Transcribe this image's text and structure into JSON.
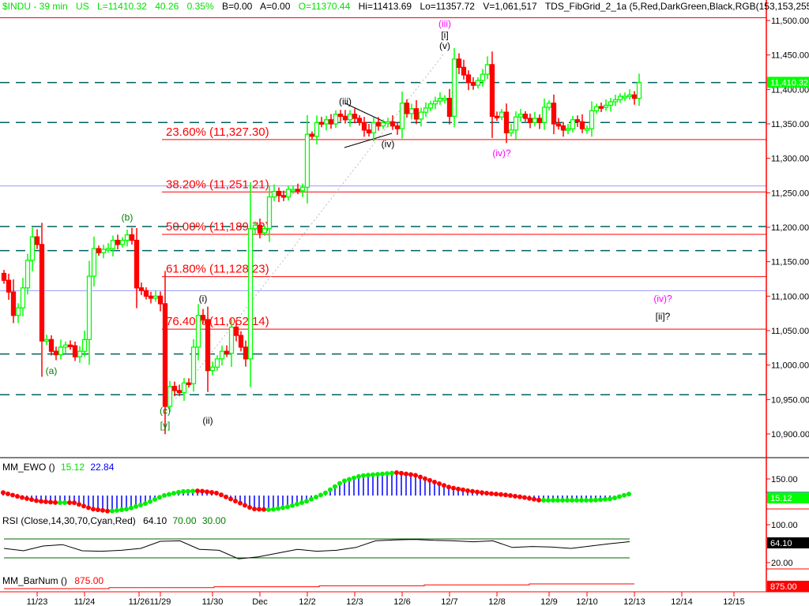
{
  "header": {
    "symbol": "$INDU - 39 min",
    "exchange": "US",
    "last": "L=11410.32",
    "change": "40.26",
    "change_pct": "0.35%",
    "bid": "B=0.00",
    "ask": "A=0.00",
    "open": "O=11370.44",
    "high": "Hi=11413.69",
    "low": "Lo=11357.72",
    "volume": "V=1,061,517",
    "study": "TDS_FibGrid_2_1a (5,Red,DarkGreen,Black,RGB(153,153,255),..."
  },
  "colors": {
    "up": "#00ff00",
    "down": "#ff0000",
    "fib": "#ff0000",
    "grid_dashed": "#006060",
    "blue_line": "#9999ff",
    "axis": "#ff0000"
  },
  "chart_data": [
    {
      "type": "candlestick",
      "ylim": [
        10860,
        11525
      ],
      "y_ticks": [
        "11,500.00",
        "11,450.00",
        "11,400.00",
        "11,350.00",
        "11,300.00",
        "11,250.00",
        "11,200.00",
        "11,150.00",
        "11,100.00",
        "11,050.00",
        "11,000.00",
        "10,950.00",
        "10,900.00"
      ],
      "y_tick_values": [
        11500,
        11450,
        11400,
        11350,
        11300,
        11250,
        11200,
        11150,
        11100,
        11050,
        11000,
        10950,
        10900
      ],
      "last_price_label": "11,410.32",
      "closes": [
        11123,
        11106,
        11072,
        11083,
        11112,
        11152,
        11186,
        11175,
        11035,
        11037,
        11020,
        11015,
        11026,
        11029,
        11028,
        11012,
        11020,
        11037,
        11129,
        11169,
        11163,
        11168,
        11169,
        11181,
        11175,
        11181,
        11189,
        11181,
        11112,
        11108,
        11100,
        11097,
        11100,
        11089,
        10940,
        10969,
        10963,
        10960,
        10974,
        10973,
        11026,
        11072,
        11066,
        10992,
        10997,
        11009,
        11020,
        11017,
        11055,
        11043,
        11026,
        11009,
        11198,
        11203,
        11192,
        11198,
        11244,
        11252,
        11246,
        11244,
        11255,
        11255,
        11253,
        11258,
        11335,
        11332,
        11352,
        11350,
        11356,
        11350,
        11364,
        11361,
        11356,
        11364,
        11358,
        11352,
        11341,
        11337,
        11352,
        11347,
        11352,
        11353,
        11347,
        11343,
        11380,
        11365,
        11372,
        11357,
        11367,
        11373,
        11379,
        11383,
        11387,
        11387,
        11361,
        11444,
        11432,
        11421,
        11410,
        11406,
        11413,
        11422,
        11436,
        11361,
        11360,
        11367,
        11337,
        11341,
        11360,
        11364,
        11358,
        11352,
        11358,
        11352,
        11374,
        11380,
        11350,
        11347,
        11341,
        11343,
        11356,
        11353,
        11343,
        11343,
        11369,
        11375,
        11374,
        11377,
        11382,
        11385,
        11390,
        11390,
        11392,
        11387,
        11410
      ],
      "x_ticks": [
        {
          "label": "11/23",
          "bar": 7
        },
        {
          "label": "11/24",
          "bar": 17
        },
        {
          "label": "11/26",
          "bar": 28.5
        },
        {
          "label": "11/29",
          "bar": 33
        },
        {
          "label": "11/30",
          "bar": 44
        },
        {
          "label": "Dec",
          "bar": 54
        },
        {
          "label": "12/2",
          "bar": 64
        },
        {
          "label": "12/3",
          "bar": 74
        },
        {
          "label": "12/6",
          "bar": 84
        },
        {
          "label": "12/7",
          "bar": 94
        },
        {
          "label": "12/8",
          "bar": 104
        },
        {
          "label": "12/9",
          "bar": 115
        },
        {
          "label": "12/10",
          "bar": 123
        },
        {
          "label": "12/13",
          "bar": 133
        },
        {
          "label": "12/14",
          "bar": 143
        },
        {
          "label": "12/15",
          "bar": 154
        }
      ],
      "fib_levels": [
        {
          "label": "23.60% (11,327.30)",
          "value": 11327.3
        },
        {
          "label": "38.20% (11,251.21)",
          "value": 11251.21
        },
        {
          "label": "50.00% (11,189.72)",
          "value": 11189.72
        },
        {
          "label": "61.80% (11,128.23)",
          "value": 11128.23
        },
        {
          "label": "76.40% (11,052.14)",
          "value": 11052.14
        }
      ],
      "fib_top": 11504,
      "dashed_levels": [
        11410,
        11352,
        11201,
        11166,
        11016,
        10957
      ],
      "blue_levels": [
        11260,
        11108
      ],
      "wave_labels": [
        {
          "text": "(iii)",
          "bar": 93,
          "price": 11491,
          "color": "#ff00ff"
        },
        {
          "text": "[i]",
          "bar": 93,
          "price": 11474,
          "color": "#000"
        },
        {
          "text": "(v)",
          "bar": 93,
          "price": 11459,
          "color": "#000"
        },
        {
          "text": "(iii)",
          "bar": 72,
          "price": 11378,
          "color": "#000"
        },
        {
          "text": "(iv)",
          "bar": 81,
          "price": 11316,
          "color": "#000"
        },
        {
          "text": "(iv)?",
          "bar": 105,
          "price": 11303,
          "color": "#ff00ff"
        },
        {
          "text": "(b)",
          "bar": 26,
          "price": 11210,
          "color": "#008000"
        },
        {
          "text": "(a)",
          "bar": 10,
          "price": 10987,
          "color": "#008000"
        },
        {
          "text": "(c)",
          "bar": 34,
          "price": 10929,
          "color": "#008000"
        },
        {
          "text": "[y]",
          "bar": 34,
          "price": 10908,
          "color": "#008000"
        },
        {
          "text": "(i)",
          "bar": 42,
          "price": 11092,
          "color": "#000"
        },
        {
          "text": "(ii)",
          "bar": 43,
          "price": 10915,
          "color": "#000"
        },
        {
          "text": "(iv)?",
          "bar": 139,
          "price": 11092,
          "color": "#ff00ff"
        },
        {
          "text": "[ii]?",
          "bar": 139,
          "price": 11066,
          "color": "#000"
        }
      ]
    },
    {
      "type": "dots-histogram",
      "title": "MM_EWO ()",
      "value1": "15.12",
      "value2": "22.84",
      "y_ticks": [
        "150.00"
      ],
      "last_label": "15.12",
      "values": [
        28,
        -14,
        -49,
        -63,
        -63,
        -119,
        -140,
        -119,
        -70,
        0,
        35,
        42,
        21,
        -49,
        -119,
        -126,
        -98,
        -49,
        21,
        126,
        175,
        189,
        203,
        182,
        126,
        70,
        42,
        21,
        7,
        -14,
        -42,
        -42,
        -42,
        -42,
        -28,
        15
      ]
    },
    {
      "type": "line",
      "title": "RSI (Close,14,30,70,Cyan,Red)",
      "value": "64.10",
      "upper": "70.00",
      "lower": "30.00",
      "y_ticks": [
        "100.00",
        "20.00"
      ],
      "last_label": "64.10",
      "values": [
        50,
        45,
        55,
        58,
        45,
        44,
        46,
        50,
        65,
        66,
        48,
        46,
        28,
        32,
        40,
        48,
        44,
        46,
        52,
        66,
        68,
        69,
        67,
        66,
        64,
        66,
        52,
        54,
        53,
        50,
        55,
        60,
        64.1
      ]
    },
    {
      "type": "line",
      "title": "MM_BarNum ()",
      "value": "875.00",
      "last_label": "875.00"
    }
  ]
}
